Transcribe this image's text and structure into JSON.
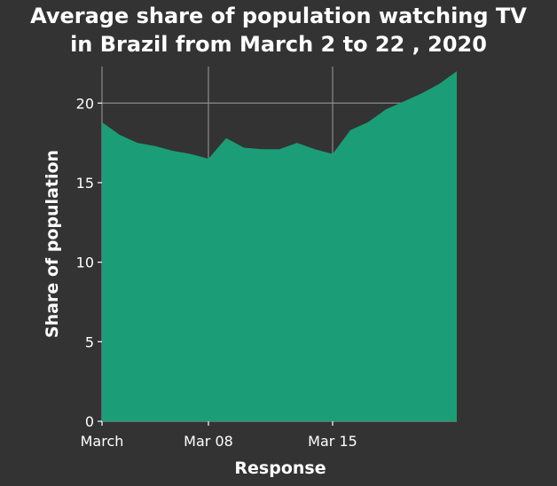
{
  "chart_data": {
    "type": "area",
    "title": "Average share of population watching TV in Brazil from March 2 to 22 , 2020",
    "title_lines": [
      "Average share of population watching TV",
      "in Brazil from March 2 to 22 , 2020"
    ],
    "xlabel": "Response",
    "ylabel": "Share of population",
    "x": [
      "2020-03-02",
      "2020-03-03",
      "2020-03-04",
      "2020-03-05",
      "2020-03-06",
      "2020-03-07",
      "2020-03-08",
      "2020-03-09",
      "2020-03-10",
      "2020-03-11",
      "2020-03-12",
      "2020-03-13",
      "2020-03-14",
      "2020-03-15",
      "2020-03-16",
      "2020-03-17",
      "2020-03-18",
      "2020-03-19",
      "2020-03-20",
      "2020-03-21",
      "2020-03-22"
    ],
    "values": [
      18.8,
      18.0,
      17.5,
      17.3,
      17.0,
      16.8,
      16.5,
      17.8,
      17.2,
      17.1,
      17.1,
      17.5,
      17.1,
      16.8,
      18.3,
      18.8,
      19.6,
      20.1,
      20.6,
      21.2,
      22.0
    ],
    "xlim": [
      "2020-03-02",
      "2020-03-22"
    ],
    "ylim": [
      0,
      22.3
    ],
    "xticks": [
      {
        "date": "2020-03-02",
        "label": "March"
      },
      {
        "date": "2020-03-08",
        "label": "Mar 08"
      },
      {
        "date": "2020-03-15",
        "label": "Mar 15"
      }
    ],
    "yticks": [
      0,
      5,
      10,
      15,
      20
    ],
    "grid": true,
    "colors": {
      "background": "#333333",
      "panel": "#333333",
      "area": "#1b9e77",
      "grid": "#8c8c8c",
      "text": "#ffffff"
    }
  }
}
